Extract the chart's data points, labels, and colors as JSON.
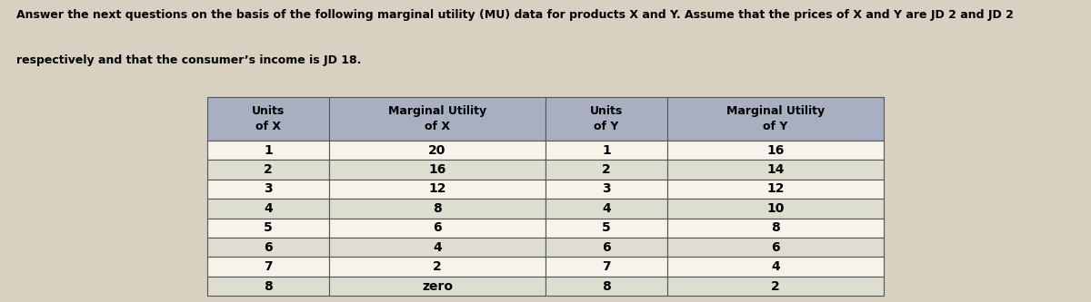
{
  "header_text_line1": "Answer the next questions on the basis of the following marginal utility (MU) data for products X and Y. Assume that the prices of X and Y are JD 2 and JD 2",
  "header_text_line2": "respectively and that the consumer’s income is JD 18.",
  "col_headers_line1": [
    "Units",
    "Marginal Utility",
    "Units",
    "Marginal Utility"
  ],
  "col_headers_line2": [
    "of X",
    "of X",
    "of Y",
    "of Y"
  ],
  "units_x": [
    "1",
    "2",
    "3",
    "4",
    "5",
    "6",
    "7",
    "8"
  ],
  "mu_x": [
    "20",
    "16",
    "12",
    "8",
    "6",
    "4",
    "2",
    "zero"
  ],
  "units_y": [
    "1",
    "2",
    "3",
    "4",
    "5",
    "6",
    "7",
    "8"
  ],
  "mu_y": [
    "16",
    "14",
    "12",
    "10",
    "8",
    "6",
    "4",
    "2"
  ],
  "header_row_bg": "#a8afc0",
  "odd_row_bg": "#f5f3ea",
  "even_row_bg": "#ddddd0",
  "header_font_color": "#000000",
  "cell_font_color": "#000000",
  "page_bg": "#d8d0c0",
  "table_border_color": "#555555",
  "header_fontsize": 9,
  "cell_fontsize": 10,
  "col_header_fontsize": 9
}
